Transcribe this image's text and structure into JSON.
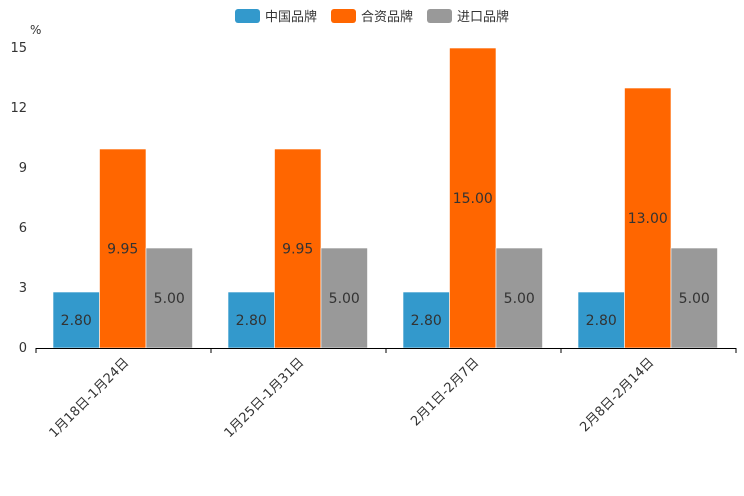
{
  "chart_data": {
    "type": "bar",
    "unit_label": "%",
    "categories": [
      "1月18日-1月24日",
      "1月25日-1月31日",
      "2月1日-2月7日",
      "2月8日-2月14日"
    ],
    "series": [
      {
        "name": "中国品牌",
        "color": "#3399CC",
        "values": [
          2.8,
          2.8,
          2.8,
          2.8
        ],
        "labels": [
          "2.80",
          "2.80",
          "2.80",
          "2.80"
        ]
      },
      {
        "name": "合资品牌",
        "color": "#FF6600",
        "values": [
          9.95,
          9.95,
          15.0,
          13.0
        ],
        "labels": [
          "9.95",
          "9.95",
          "15.00",
          "13.00"
        ]
      },
      {
        "name": "进口品牌",
        "color": "#999999",
        "values": [
          5.0,
          5.0,
          5.0,
          5.0
        ],
        "labels": [
          "5.00",
          "5.00",
          "5.00",
          "5.00"
        ]
      }
    ],
    "ylim": [
      0,
      15
    ],
    "yticks": [
      "0",
      "3",
      "6",
      "9",
      "12",
      "15"
    ],
    "legend_position": "top-center"
  }
}
